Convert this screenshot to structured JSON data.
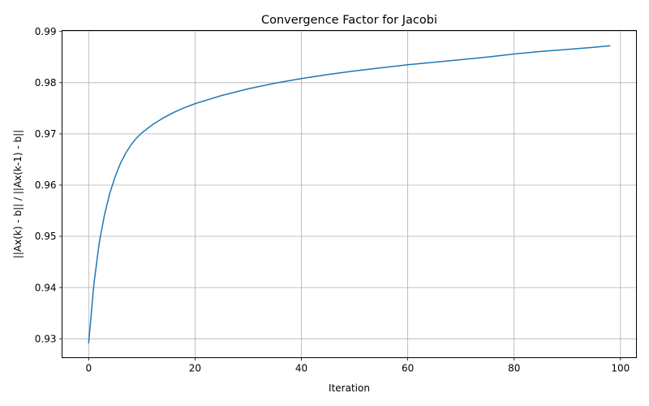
{
  "chart_data": {
    "type": "line",
    "title": "Convergence Factor for Jacobi",
    "xlabel": "Iteration",
    "ylabel": "||Ax(k) - b|| / ||Ax(k-1) - b||",
    "xlim": [
      -5,
      103
    ],
    "ylim": [
      0.9263,
      0.9902
    ],
    "x_ticks": [
      0,
      20,
      40,
      60,
      80,
      100
    ],
    "x_tick_labels": [
      "0",
      "20",
      "40",
      "60",
      "80",
      "100"
    ],
    "y_ticks": [
      0.93,
      0.94,
      0.95,
      0.96,
      0.97,
      0.98,
      0.99
    ],
    "y_tick_labels": [
      "0.93",
      "0.94",
      "0.95",
      "0.96",
      "0.97",
      "0.98",
      "0.99"
    ],
    "grid": true,
    "color": "#1f77b4",
    "series": [
      {
        "x": [
          0,
          1,
          2,
          3,
          4,
          5,
          6,
          7,
          8,
          9,
          10,
          12,
          14,
          16,
          18,
          20,
          25,
          30,
          35,
          40,
          45,
          50,
          55,
          60,
          65,
          70,
          75,
          80,
          85,
          90,
          95,
          98
        ],
        "values": [
          0.9292,
          0.9408,
          0.9488,
          0.9543,
          0.9585,
          0.9617,
          0.9643,
          0.9663,
          0.9679,
          0.9692,
          0.9702,
          0.9718,
          0.9731,
          0.9742,
          0.9751,
          0.9759,
          0.9775,
          0.9788,
          0.9799,
          0.9808,
          0.9816,
          0.9823,
          0.9829,
          0.9835,
          0.984,
          0.9845,
          0.985,
          0.9856,
          0.9861,
          0.9865,
          0.9869,
          0.9872
        ]
      }
    ]
  }
}
